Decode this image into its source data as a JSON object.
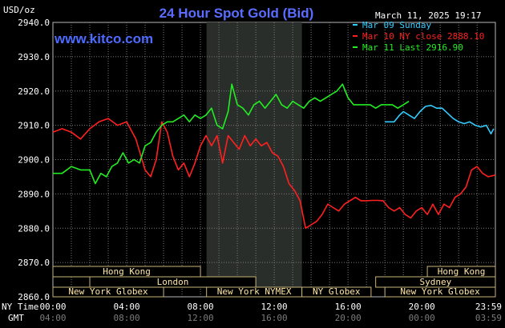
{
  "chart_data": {
    "type": "line",
    "title": "24 Hour Spot Gold (Bid)",
    "ylabel": "USD/oz",
    "date_stamp": "March 11, 2025 19:17",
    "watermark": "www.kitco.com",
    "ylim": [
      2860.0,
      2940.0
    ],
    "y_ticks": [
      "2940.0",
      "2930.0",
      "2920.0",
      "2910.0",
      "2900.0",
      "2890.0",
      "2880.0",
      "2870.0",
      "2860.0"
    ],
    "x_row1_label": "NY Time",
    "x_row2_label": "GMT",
    "x_ticks_ny": [
      "00:00",
      "04:00",
      "08:00",
      "12:00",
      "16:00",
      "20:00",
      "23:59"
    ],
    "x_ticks_gmt": [
      "04:00",
      "08:00",
      "12:00",
      "16:00",
      "20:00",
      "00:00",
      "03:59"
    ],
    "grid": true,
    "legend_position": "top-right",
    "legend": [
      {
        "label": "Mar 09 Sunday",
        "color": "#33ccff"
      },
      {
        "label": "Mar 10 NY close 2888.10",
        "color": "#ff2020"
      },
      {
        "label": "Mar 11 Last 2916.90",
        "color": "#22ee22"
      }
    ],
    "sessions_top": [
      {
        "label": "Hong Kong",
        "start": 0.0,
        "end": 8.0
      },
      {
        "label": "Hong Kong",
        "start": 20.3,
        "end": 23.99
      }
    ],
    "sessions_mid": [
      {
        "label": "London",
        "start": 2.0,
        "end": 11.0
      },
      {
        "label": "Sydney",
        "start": 17.5,
        "end": 23.99
      }
    ],
    "sessions_bottom": [
      {
        "label": "New York Globex",
        "start": 0.0,
        "end": 6.0
      },
      {
        "label": "New York NYMEX",
        "start": 8.33,
        "end": 13.5
      },
      {
        "label": "NY Globex",
        "start": 13.5,
        "end": 17.25
      },
      {
        "label": "New York Globex",
        "start": 18.0,
        "end": 23.99
      }
    ],
    "highlight_hours": [
      8.33,
      13.5
    ],
    "series": [
      {
        "name": "Mar 09 Sunday",
        "color": "#33ccff",
        "x": [
          18.0,
          18.5,
          18.8,
          19.0,
          19.3,
          19.6,
          19.9,
          20.2,
          20.5,
          20.8,
          21.1,
          21.4,
          21.7,
          22.0,
          22.3,
          22.6,
          22.9,
          23.2,
          23.5,
          23.75,
          23.9
        ],
        "y": [
          2911.0,
          2911.0,
          2913.0,
          2914.0,
          2913.0,
          2912.0,
          2914.0,
          2915.5,
          2915.8,
          2915.0,
          2915.0,
          2913.5,
          2912.0,
          2911.0,
          2910.5,
          2911.0,
          2910.0,
          2909.5,
          2910.0,
          2907.5,
          2909.0
        ]
      },
      {
        "name": "Mar 10 NY close 2888.10",
        "color": "#ff2020",
        "x": [
          0.0,
          0.5,
          1.0,
          1.5,
          2.0,
          2.5,
          3.0,
          3.5,
          4.0,
          4.5,
          5.0,
          5.3,
          5.6,
          5.9,
          6.2,
          6.5,
          6.8,
          7.1,
          7.4,
          7.7,
          8.0,
          8.3,
          8.6,
          8.9,
          9.2,
          9.5,
          9.8,
          10.1,
          10.4,
          10.7,
          11.0,
          11.3,
          11.6,
          11.9,
          12.2,
          12.5,
          12.8,
          13.1,
          13.4,
          13.7,
          14.0,
          14.3,
          14.6,
          14.9,
          15.2,
          15.5,
          15.8,
          16.1,
          16.4,
          16.7,
          17.0,
          17.3,
          17.6,
          17.9,
          18.2,
          18.5,
          18.8,
          19.1,
          19.4,
          19.7,
          20.0,
          20.3,
          20.6,
          20.9,
          21.2,
          21.5,
          21.8,
          22.1,
          22.4,
          22.7,
          23.0,
          23.3,
          23.6,
          23.99
        ],
        "y": [
          2908.0,
          2909.0,
          2908.0,
          2906.0,
          2909.0,
          2911.0,
          2912.0,
          2910.0,
          2911.0,
          2906.0,
          2897.0,
          2895.0,
          2900.0,
          2911.0,
          2908.0,
          2901.0,
          2897.0,
          2899.0,
          2895.0,
          2899.0,
          2904.0,
          2907.0,
          2904.0,
          2907.0,
          2899.0,
          2907.0,
          2905.0,
          2903.0,
          2907.0,
          2904.0,
          2906.0,
          2904.0,
          2905.0,
          2902.0,
          2901.0,
          2898.0,
          2893.0,
          2891.0,
          2888.0,
          2880.0,
          2881.0,
          2882.0,
          2884.0,
          2887.0,
          2886.0,
          2885.0,
          2887.0,
          2888.0,
          2889.0,
          2888.0,
          2888.0,
          2888.1,
          2888.1,
          2888.0,
          2886.0,
          2885.0,
          2886.0,
          2884.0,
          2883.0,
          2885.0,
          2886.0,
          2884.0,
          2887.0,
          2884.0,
          2887.0,
          2886.0,
          2889.0,
          2890.0,
          2892.0,
          2897.0,
          2898.0,
          2896.0,
          2895.0,
          2895.5
        ]
      },
      {
        "name": "Mar 11 Last 2916.90",
        "color": "#22ee22",
        "x": [
          0.0,
          0.5,
          1.0,
          1.5,
          2.0,
          2.3,
          2.6,
          2.9,
          3.2,
          3.5,
          3.8,
          4.1,
          4.4,
          4.7,
          5.0,
          5.3,
          5.6,
          5.9,
          6.2,
          6.5,
          6.8,
          7.1,
          7.4,
          7.7,
          8.0,
          8.3,
          8.6,
          8.9,
          9.2,
          9.5,
          9.7,
          10.0,
          10.3,
          10.6,
          10.9,
          11.2,
          11.5,
          11.8,
          12.1,
          12.4,
          12.7,
          13.0,
          13.3,
          13.6,
          13.9,
          14.2,
          14.5,
          14.8,
          15.1,
          15.4,
          15.7,
          16.0,
          16.3,
          16.6,
          16.9,
          17.2,
          17.5,
          17.8,
          18.1,
          18.4,
          18.7,
          19.0,
          19.3
        ],
        "y": [
          2896.0,
          2896.0,
          2898.0,
          2897.0,
          2897.0,
          2893.0,
          2896.0,
          2895.0,
          2898.0,
          2899.0,
          2902.0,
          2899.0,
          2900.0,
          2899.0,
          2904.0,
          2905.0,
          2908.0,
          2910.0,
          2911.0,
          2911.0,
          2912.0,
          2913.0,
          2911.0,
          2913.0,
          2912.0,
          2913.0,
          2915.0,
          2910.0,
          2909.0,
          2914.0,
          2922.0,
          2916.0,
          2915.0,
          2913.0,
          2916.0,
          2917.0,
          2915.0,
          2917.0,
          2919.0,
          2916.0,
          2915.0,
          2917.0,
          2916.0,
          2915.0,
          2917.0,
          2918.0,
          2917.0,
          2918.0,
          2919.0,
          2920.0,
          2922.0,
          2918.0,
          2916.0,
          2916.0,
          2916.0,
          2916.0,
          2915.0,
          2916.0,
          2916.0,
          2916.0,
          2915.0,
          2916.0,
          2917.0
        ]
      }
    ]
  }
}
